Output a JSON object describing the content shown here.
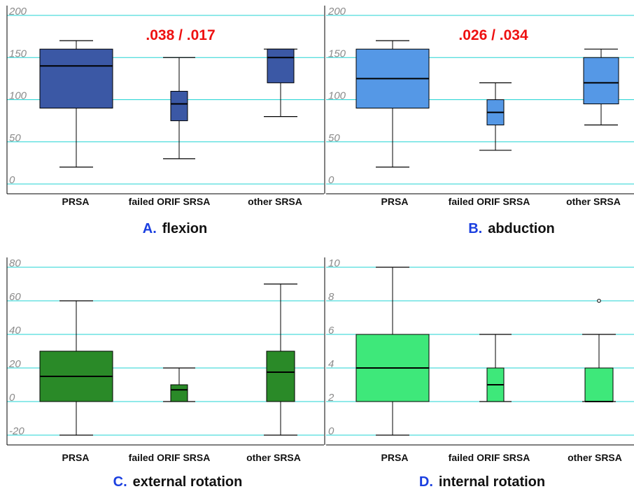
{
  "chart_data": [
    {
      "type": "box",
      "caption_letter": "A.",
      "caption_text": "flexion",
      "annotation": ".038 / .017",
      "ylim": [
        0,
        200
      ],
      "yticks": [
        "0",
        "50",
        "100",
        "150",
        "200"
      ],
      "grid": true,
      "fill": "#3b58a5",
      "categories": [
        "PRSA",
        "failed ORIF SRSA",
        "other SRSA"
      ],
      "boxes": [
        {
          "min": 20,
          "q1": 90,
          "median": 140,
          "q3": 160,
          "max": 170,
          "outliers": []
        },
        {
          "min": 30,
          "q1": 75,
          "median": 95,
          "q3": 110,
          "max": 150,
          "outliers": []
        },
        {
          "min": 80,
          "q1": 120,
          "median": 150,
          "q3": 160,
          "max": 160,
          "outliers": []
        }
      ]
    },
    {
      "type": "box",
      "caption_letter": "B.",
      "caption_text": "abduction",
      "annotation": ".026 / .034",
      "ylim": [
        0,
        200
      ],
      "yticks": [
        "0",
        "50",
        "100",
        "150",
        "200"
      ],
      "grid": true,
      "fill": "#5598e6",
      "categories": [
        "PRSA",
        "failed ORIF SRSA",
        "other SRSA"
      ],
      "boxes": [
        {
          "min": 20,
          "q1": 90,
          "median": 125,
          "q3": 160,
          "max": 170,
          "outliers": []
        },
        {
          "min": 40,
          "q1": 70,
          "median": 85,
          "q3": 100,
          "max": 120,
          "outliers": []
        },
        {
          "min": 70,
          "q1": 95,
          "median": 120,
          "q3": 150,
          "max": 160,
          "outliers": []
        }
      ]
    },
    {
      "type": "box",
      "caption_letter": "C.",
      "caption_text": "external rotation",
      "annotation": "",
      "ylim": [
        -20,
        80
      ],
      "yticks": [
        "-20",
        "0",
        "20",
        "40",
        "60",
        "80"
      ],
      "grid": true,
      "fill": "#2a8a28",
      "categories": [
        "PRSA",
        "failed ORIF SRSA",
        "other SRSA"
      ],
      "boxes": [
        {
          "min": -20,
          "q1": 0,
          "median": 15,
          "q3": 30,
          "max": 60,
          "outliers": []
        },
        {
          "min": 0,
          "q1": 0,
          "median": 7,
          "q3": 10,
          "max": 20,
          "outliers": []
        },
        {
          "min": -20,
          "q1": 0,
          "median": 17.5,
          "q3": 30,
          "max": 70,
          "outliers": []
        }
      ]
    },
    {
      "type": "box",
      "caption_letter": "D.",
      "caption_text": "internal rotation",
      "annotation": "",
      "ylim": [
        0,
        10
      ],
      "yticks": [
        "0",
        "2",
        "4",
        "6",
        "8",
        "10"
      ],
      "grid": true,
      "fill": "#3ee87a",
      "categories": [
        "PRSA",
        "failed ORIF SRSA",
        "other SRSA"
      ],
      "boxes": [
        {
          "min": 0,
          "q1": 2,
          "median": 4,
          "q3": 6,
          "max": 10,
          "outliers": []
        },
        {
          "min": 2,
          "q1": 2,
          "median": 3,
          "q3": 4,
          "max": 6,
          "outliers": []
        },
        {
          "min": 2,
          "q1": 2,
          "median": 2,
          "q3": 4,
          "max": 6,
          "outliers": [
            8
          ]
        }
      ]
    }
  ]
}
